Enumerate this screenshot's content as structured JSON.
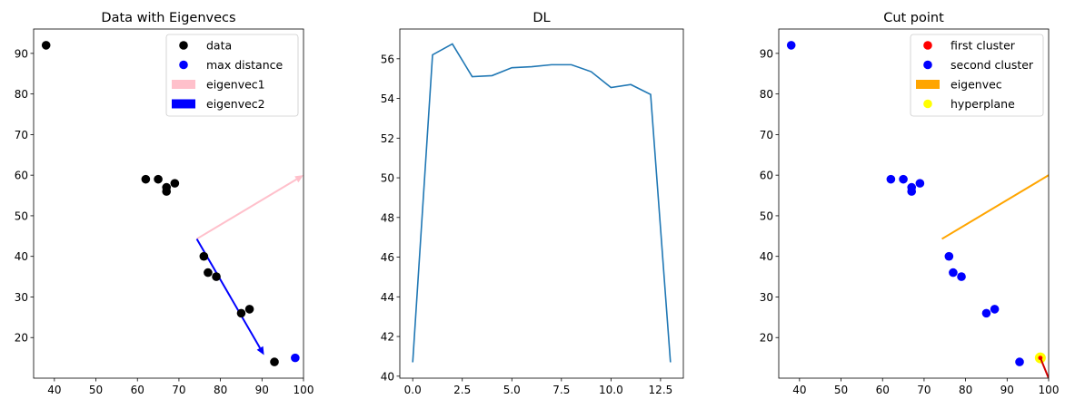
{
  "chart_data": [
    {
      "type": "scatter",
      "title": "Data with Eigenvecs",
      "xlim": [
        35,
        100
      ],
      "ylim": [
        10,
        96
      ],
      "xticks": [
        40,
        50,
        60,
        70,
        80,
        90,
        100
      ],
      "yticks": [
        20,
        30,
        40,
        50,
        60,
        70,
        80,
        90
      ],
      "legend_position": "upper right",
      "points": {
        "name": "data",
        "color": "#000000",
        "x": [
          38,
          62,
          65,
          67,
          67,
          69,
          76,
          77,
          79,
          85,
          87,
          93
        ],
        "y": [
          92,
          59,
          59,
          57,
          56,
          58,
          40,
          36,
          35,
          26,
          27,
          14
        ]
      },
      "max_distance": {
        "name": "max distance",
        "color": "#0000ff",
        "x": [
          98
        ],
        "y": [
          15
        ]
      },
      "eigenvec1": {
        "name": "eigenvec1",
        "color": "#ffc0cb",
        "from": [
          74.3,
          44.3
        ],
        "to": [
          100,
          60
        ]
      },
      "eigenvec2": {
        "name": "eigenvec2",
        "color": "#0000ff",
        "from": [
          74.3,
          44.3
        ],
        "to": [
          90.5,
          15.7
        ]
      }
    },
    {
      "type": "line",
      "title": "DL",
      "xlim": [
        -0.65,
        13.65
      ],
      "ylim": [
        39.9,
        57.5
      ],
      "xticks": [
        0.0,
        2.5,
        5.0,
        7.5,
        10.0,
        12.5
      ],
      "xtick_labels": [
        "0.0",
        "2.5",
        "5.0",
        "7.5",
        "10.0",
        "12.5"
      ],
      "yticks": [
        40,
        42,
        44,
        46,
        48,
        50,
        52,
        54,
        56
      ],
      "series": [
        {
          "color": "#1f77b4",
          "x": [
            0,
            1,
            2,
            3,
            4,
            5,
            6,
            7,
            8,
            9,
            10,
            11,
            12,
            13
          ],
          "y": [
            40.7,
            56.2,
            56.75,
            55.1,
            55.15,
            55.55,
            55.6,
            55.7,
            55.7,
            55.35,
            54.55,
            54.7,
            54.2,
            40.7
          ]
        }
      ]
    },
    {
      "type": "scatter",
      "title": "Cut point",
      "xlim": [
        35,
        100
      ],
      "ylim": [
        10,
        96
      ],
      "xticks": [
        40,
        50,
        60,
        70,
        80,
        90,
        100
      ],
      "yticks": [
        20,
        30,
        40,
        50,
        60,
        70,
        80,
        90
      ],
      "legend_position": "upper right",
      "first_cluster": {
        "name": "first cluster",
        "color": "#ff0000",
        "x": [],
        "y": []
      },
      "second_cluster": {
        "name": "second cluster",
        "color": "#0000ff",
        "x": [
          38,
          62,
          65,
          67,
          67,
          69,
          76,
          77,
          79,
          85,
          87,
          93
        ],
        "y": [
          92,
          59,
          59,
          57,
          56,
          58,
          40,
          36,
          35,
          26,
          27,
          14
        ]
      },
      "eigenvec": {
        "name": "eigenvec",
        "color": "#ffa500",
        "from": [
          74.3,
          44.3
        ],
        "to": [
          100,
          60
        ]
      },
      "hyperplane": {
        "name": "hyperplane",
        "color": "#ffff00",
        "x": [
          98
        ],
        "y": [
          15
        ]
      },
      "cut_marker": {
        "color": "#ff0000",
        "x": [
          98
        ],
        "y": [
          15
        ]
      },
      "red_segment": {
        "color": "#d00000",
        "from": [
          98,
          15
        ],
        "to": [
          100,
          10
        ]
      }
    }
  ]
}
